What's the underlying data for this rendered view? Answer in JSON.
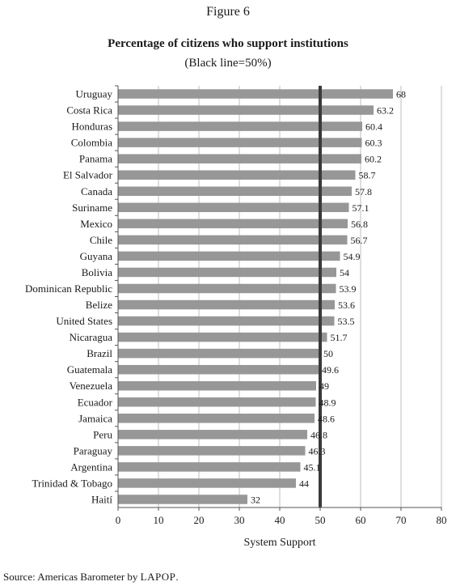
{
  "figure_label": "Figure 6",
  "source": {
    "prefix": "Source: Americas Barometer by ",
    "org": "LAPOP",
    "suffix": "."
  },
  "colors": {
    "bar": "#979797",
    "threshold": "#3a3a3a",
    "grid": "#bdbdbd",
    "axis": "#555555"
  },
  "chart_data": {
    "type": "bar",
    "orientation": "horizontal",
    "title": "Percentage of citizens who support institutions",
    "subtitle": "(Black line=50%)",
    "xlabel": "System Support",
    "ylabel": "",
    "xlim": [
      0,
      80
    ],
    "xticks": [
      0,
      10,
      20,
      30,
      40,
      50,
      60,
      70,
      80
    ],
    "grid": true,
    "threshold": 50,
    "categories": [
      "Uruguay",
      "Costa Rica",
      "Honduras",
      "Colombia",
      "Panama",
      "El Salvador",
      "Canada",
      "Suriname",
      "Mexico",
      "Chile",
      "Guyana",
      "Bolivia",
      "Dominican Republic",
      "Belize",
      "United States",
      "Nicaragua",
      "Brazil",
      "Guatemala",
      "Venezuela",
      "Ecuador",
      "Jamaica",
      "Peru",
      "Paraguay",
      "Argentina",
      "Trinidad & Tobago",
      "Haití"
    ],
    "values": [
      68,
      63.2,
      60.4,
      60.3,
      60.2,
      58.7,
      57.8,
      57.1,
      56.8,
      56.7,
      54.9,
      54,
      53.9,
      53.6,
      53.5,
      51.7,
      50,
      49.6,
      49,
      48.9,
      48.6,
      46.8,
      46.3,
      45.1,
      44,
      32
    ],
    "value_labels": [
      "68",
      "63.2",
      "60.4",
      "60.3",
      "60.2",
      "58.7",
      "57.8",
      "57.1",
      "56.8",
      "56.7",
      "54.9",
      "54",
      "53.9",
      "53.6",
      "53.5",
      "51.7",
      "50",
      "49.6",
      "49",
      "48.9",
      "48.6",
      "46.8",
      "46.3",
      "45.1",
      "44",
      "32"
    ]
  }
}
